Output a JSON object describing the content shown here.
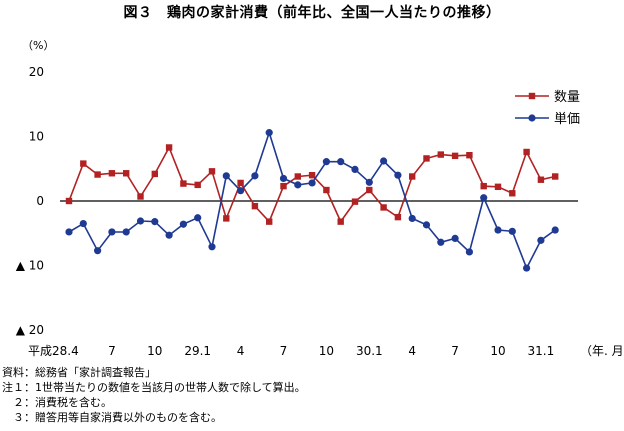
{
  "title": "図３　鶏肉の家計消費（前年比、全国一人当たりの推移）",
  "chart_data": {
    "type": "line",
    "y_unit_label": "（%）",
    "x_unit_label": "（年. 月）",
    "ylim": [
      -20,
      20
    ],
    "y_ticks": [
      {
        "value": 20,
        "label": "20"
      },
      {
        "value": 10,
        "label": "10"
      },
      {
        "value": 0,
        "label": "0"
      },
      {
        "value": -10,
        "label": "▲ 10"
      },
      {
        "value": -20,
        "label": "▲ 20"
      }
    ],
    "x_count": 36,
    "x_ticks": [
      {
        "index": 0,
        "label": "平成28.4"
      },
      {
        "index": 3,
        "label": "7"
      },
      {
        "index": 6,
        "label": "10"
      },
      {
        "index": 9,
        "label": "29.1"
      },
      {
        "index": 12,
        "label": "4"
      },
      {
        "index": 15,
        "label": "7"
      },
      {
        "index": 18,
        "label": "10"
      },
      {
        "index": 21,
        "label": "30.1"
      },
      {
        "index": 24,
        "label": "4"
      },
      {
        "index": 27,
        "label": "7"
      },
      {
        "index": 30,
        "label": "10"
      },
      {
        "index": 33,
        "label": "31.1"
      }
    ],
    "legend_position": "top-right",
    "grid": false,
    "series": [
      {
        "name": "数量",
        "color": "#b22222",
        "marker": "square",
        "values": [
          0.0,
          5.8,
          4.1,
          4.3,
          4.3,
          0.7,
          4.2,
          8.3,
          2.7,
          2.5,
          4.6,
          -2.7,
          2.8,
          -0.8,
          -3.2,
          2.3,
          3.8,
          4.0,
          1.7,
          -3.2,
          -0.1,
          1.7,
          -1.0,
          -2.5,
          3.8,
          6.6,
          7.2,
          7.0,
          7.1,
          2.3,
          2.2,
          1.2,
          7.6,
          3.3,
          3.8
        ]
      },
      {
        "name": "単価",
        "color": "#1f3a93",
        "marker": "circle",
        "values": [
          -4.8,
          -3.5,
          -7.7,
          -4.8,
          -4.8,
          -3.1,
          -3.2,
          -5.3,
          -3.6,
          -2.6,
          -7.1,
          3.9,
          1.6,
          3.9,
          10.6,
          3.5,
          2.5,
          2.8,
          6.1,
          6.1,
          4.9,
          2.9,
          6.2,
          4.0,
          -2.7,
          -3.7,
          -6.4,
          -5.8,
          -7.9,
          0.5,
          -4.5,
          -4.7,
          -10.4,
          -6.1,
          -4.5
        ]
      }
    ]
  },
  "notes": [
    "資料：総務省「家計調査報告」",
    "注１：1世帯当たりの数値を当該月の世帯人数で除して算出。",
    "　２：消費税を含む。",
    "　３：贈答用等自家消費以外のものを含む。"
  ]
}
